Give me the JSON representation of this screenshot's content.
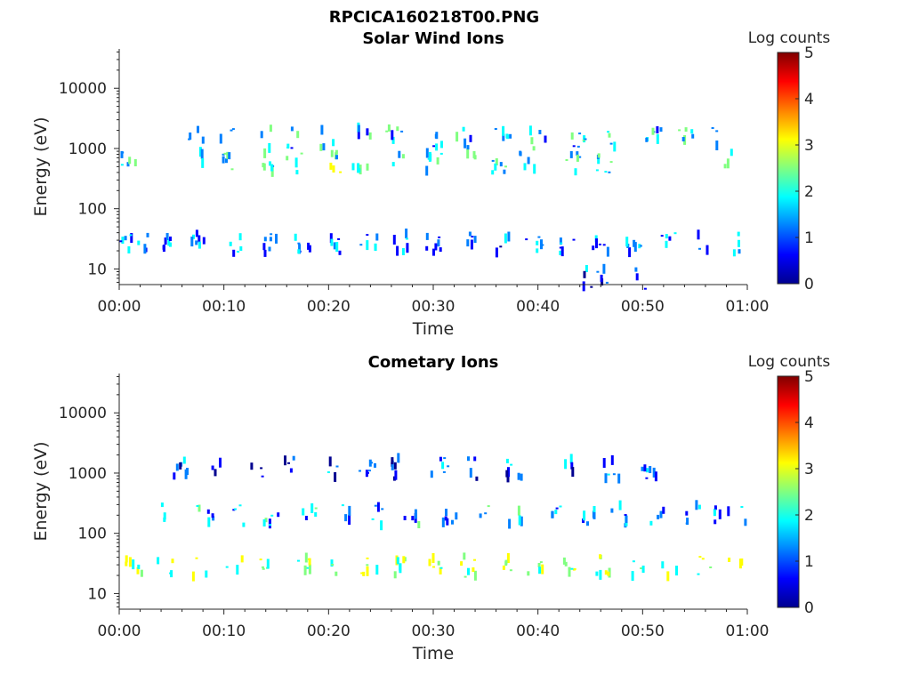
{
  "figure_title": "RPCICA160218T00.PNG",
  "colors": {
    "jet": [
      "#00008f",
      "#0000ff",
      "#0080ff",
      "#00ffff",
      "#80ff80",
      "#ffff00",
      "#ff8000",
      "#ff0000",
      "#800000"
    ]
  },
  "chart_data": [
    {
      "type": "heatmap",
      "title": "Solar Wind Ions",
      "xlabel": "Time",
      "ylabel": "Energy (eV)",
      "xlim": [
        "00:00",
        "01:00"
      ],
      "x_ticks": [
        "00:00",
        "00:10",
        "00:20",
        "00:30",
        "00:40",
        "00:50",
        "01:00"
      ],
      "ylim": [
        5.5,
        45000
      ],
      "y_scale": "log",
      "y_ticks": [
        {
          "value": 10,
          "label": "10"
        },
        {
          "value": 100,
          "label": "100"
        },
        {
          "value": 1000,
          "label": "1000"
        },
        {
          "value": 10000,
          "label": "10000"
        }
      ],
      "colorbar": {
        "label": "Log counts",
        "range": [
          0,
          5
        ],
        "ticks": [
          "0",
          "1",
          "2",
          "3",
          "4",
          "5"
        ]
      },
      "bands": [
        {
          "center_eV": 27,
          "log_counts": 1.2,
          "bursts_min": [
            0.2,
            1.6,
            4.6,
            7.0,
            10.6,
            13.8,
            17.0,
            20.2,
            23.4,
            26.6,
            29.6,
            32.8,
            36.0,
            39.2,
            42.4,
            45.6,
            48.8,
            52.0,
            55.2,
            58.4
          ]
        },
        {
          "center_eV": 600,
          "log_counts": 2.0,
          "bursts_min": [
            0.6,
            7.6,
            9.8,
            13.8,
            16.2,
            20.0,
            22.6,
            26.0,
            29.6,
            32.8,
            36.0,
            38.6,
            43.0,
            46.0,
            58.2
          ]
        },
        {
          "center_eV": 1500,
          "log_counts": 1.6,
          "bursts_min": [
            6.8,
            10.0,
            13.6,
            16.2,
            19.6,
            22.8,
            25.8,
            29.6,
            32.6,
            36.2,
            39.6,
            43.4,
            46.6,
            50.6,
            53.6,
            56.6
          ]
        },
        {
          "center_eV": 7,
          "log_counts": 0.8,
          "bursts_min": [
            44.6,
            46.0,
            49.6
          ]
        }
      ]
    },
    {
      "type": "heatmap",
      "title": "Cometary Ions",
      "xlabel": "Time",
      "ylabel": "Energy (eV)",
      "xlim": [
        "00:00",
        "01:00"
      ],
      "x_ticks": [
        "00:00",
        "00:10",
        "00:20",
        "00:30",
        "00:40",
        "00:50",
        "01:00"
      ],
      "ylim": [
        5.5,
        45000
      ],
      "y_scale": "log",
      "y_ticks": [
        {
          "value": 10,
          "label": "10"
        },
        {
          "value": 100,
          "label": "100"
        },
        {
          "value": 1000,
          "label": "1000"
        },
        {
          "value": 10000,
          "label": "10000"
        }
      ],
      "colorbar": {
        "label": "Log counts",
        "range": [
          0,
          5
        ],
        "ticks": [
          "0",
          "1",
          "2",
          "3",
          "4",
          "5"
        ]
      },
      "bands": [
        {
          "center_eV": 28,
          "log_counts": 2.6,
          "bursts_min": [
            1.0,
            4.0,
            7.4,
            10.6,
            13.8,
            17.0,
            20.2,
            23.4,
            26.6,
            29.8,
            33.0,
            36.2,
            39.4,
            42.6,
            45.8,
            49.0,
            52.2,
            55.4,
            58.6
          ]
        },
        {
          "center_eV": 200,
          "log_counts": 1.4,
          "bursts_min": [
            4.2,
            7.8,
            11.2,
            14.2,
            17.6,
            21.2,
            24.4,
            27.6,
            31.2,
            34.4,
            37.6,
            41.0,
            44.4,
            47.4,
            51.0,
            54.2,
            57.2,
            59.2
          ]
        },
        {
          "center_eV": 1200,
          "log_counts": 0.9,
          "bursts_min": [
            5.6,
            9.0,
            12.6,
            15.8,
            19.8,
            23.2,
            25.8,
            30.2,
            33.6,
            37.2,
            42.8,
            46.6,
            50.2
          ]
        }
      ]
    }
  ]
}
